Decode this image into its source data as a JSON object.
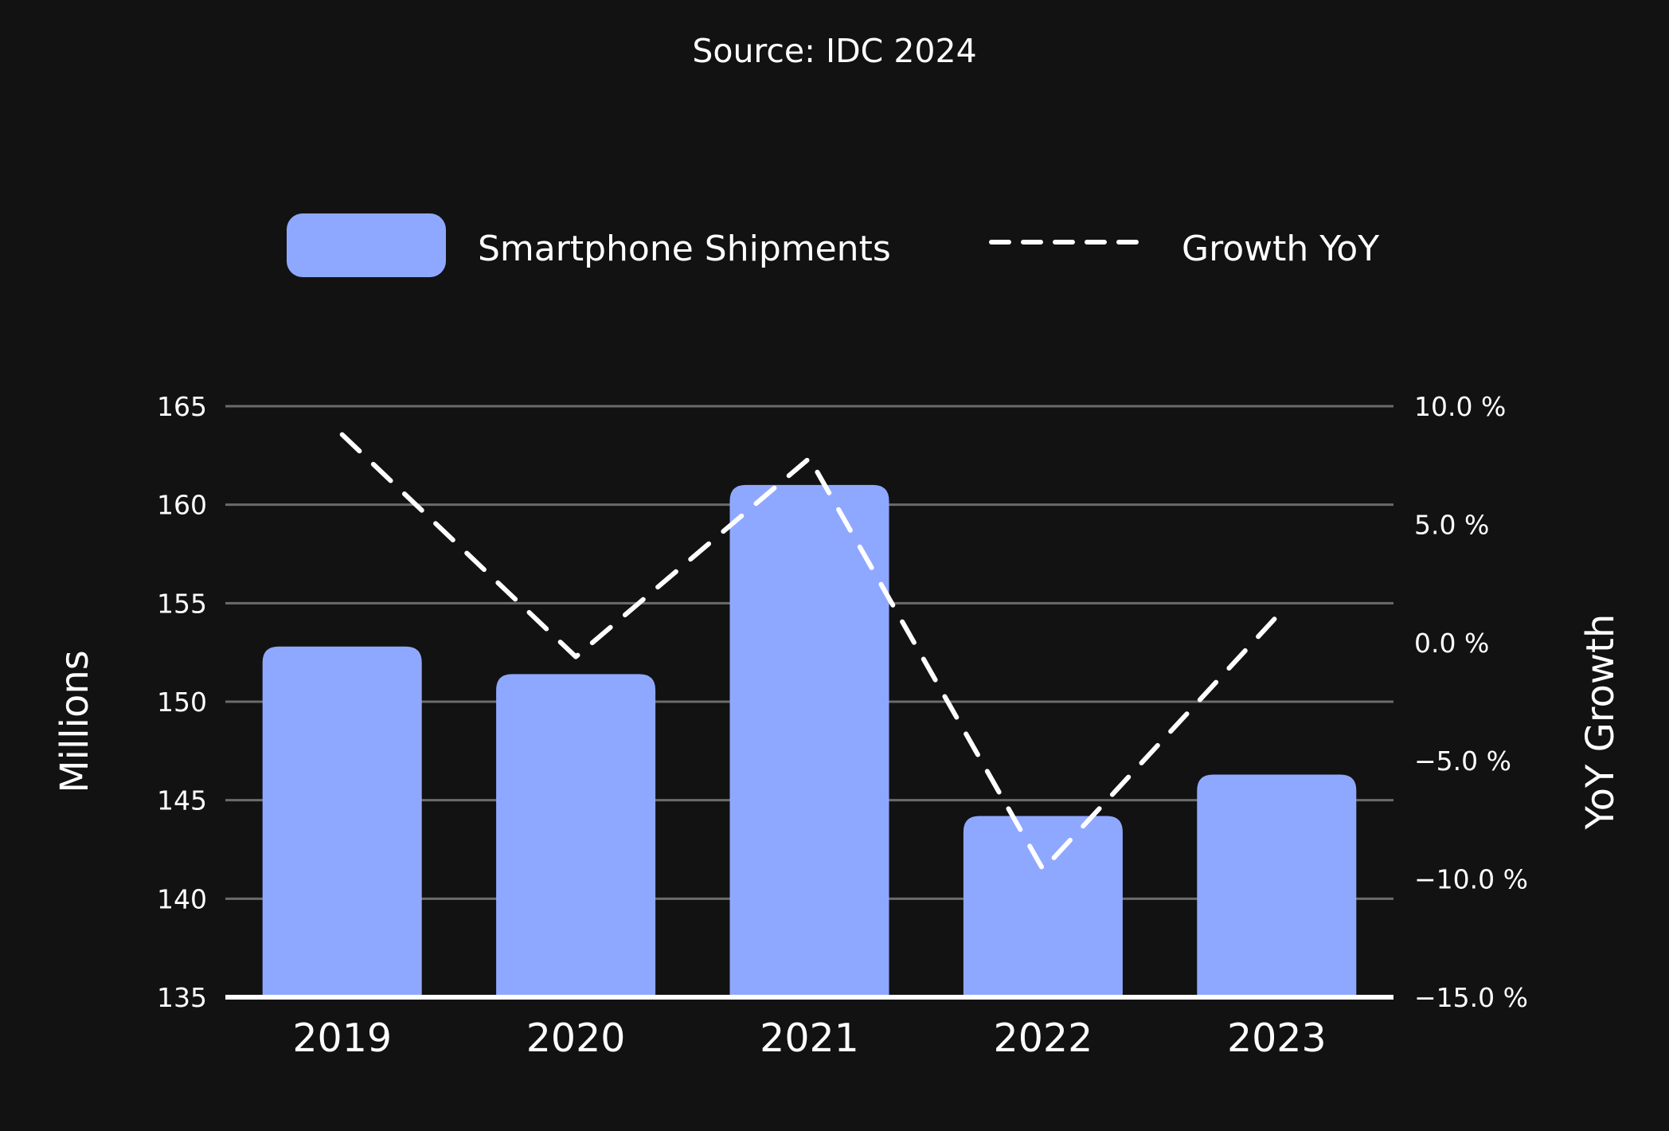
{
  "chart_data": {
    "type": "bar+line",
    "title": "Source: IDC 2024",
    "categories": [
      "2019",
      "2020",
      "2021",
      "2022",
      "2023"
    ],
    "series": [
      {
        "name": "Smartphone Shipments",
        "type": "bar",
        "axis": "left",
        "color": "#8fa8ff",
        "values": [
          152.8,
          151.4,
          161.0,
          144.2,
          146.3
        ]
      },
      {
        "name": "Growth YoY",
        "type": "line",
        "style": "dashed",
        "axis": "right",
        "color": "#ffffff",
        "values": [
          8.8,
          -0.6,
          7.8,
          -9.6,
          1.1
        ]
      }
    ],
    "ylabel": "Millions",
    "y2label": "YoY  Growth",
    "ylim": [
      135,
      165
    ],
    "yticks": [
      "165",
      "160",
      "155",
      "150",
      "145",
      "140",
      "135"
    ],
    "y2lim": [
      -15,
      10
    ],
    "y2ticks": [
      "10.0 %",
      "5.0 %",
      "0.0 %",
      "−5.0 %",
      "−10.0 %",
      "−15.0 %"
    ],
    "grid": true,
    "legend_position": "top-center"
  },
  "colors": {
    "background": "#121212",
    "bar": "#8fa8ff",
    "grid": "#6b6b6b",
    "baseline": "#ffffff",
    "line": "#ffffff"
  }
}
